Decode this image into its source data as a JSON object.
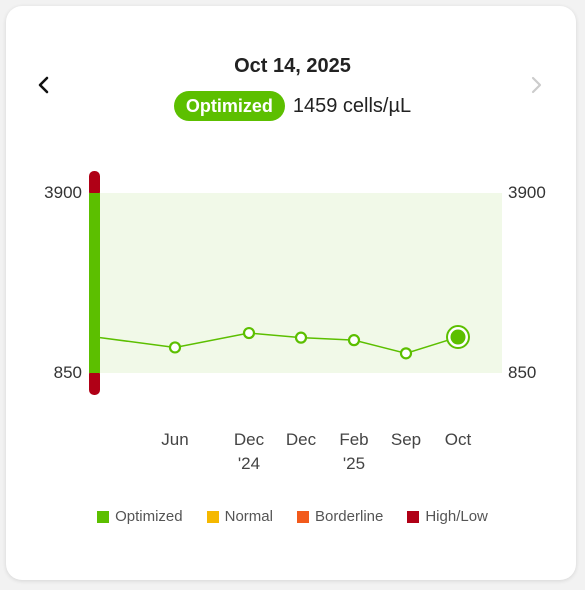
{
  "header": {
    "date": "Oct 14, 2025",
    "status_badge": "Optimized",
    "reading": "1459 cells/µL"
  },
  "icons": {
    "prev": "chevron-left-icon",
    "next": "chevron-right-icon"
  },
  "colors": {
    "optimized": "#5cbf00",
    "normal": "#f5b800",
    "borderline": "#f25a1b",
    "high_low": "#b00016",
    "range_fill": "#f1f9e8",
    "next_disabled": "#cccccc"
  },
  "chart_data": {
    "type": "line",
    "y_range_labels": {
      "top": "3900",
      "bottom": "850"
    },
    "ylim": [
      850,
      3900
    ],
    "x_labels": [
      {
        "line1": "Jun",
        "line2": ""
      },
      {
        "line1": "Dec",
        "line2": "'24"
      },
      {
        "line1": "Dec",
        "line2": ""
      },
      {
        "line1": "Feb",
        "line2": "'25"
      },
      {
        "line1": "Sep",
        "line2": ""
      },
      {
        "line1": "Oct",
        "line2": ""
      }
    ],
    "series": [
      {
        "values": [
          1283,
          1527,
          1449,
          1407,
          1183,
          1459
        ]
      }
    ],
    "leading_value": 1449,
    "highlight_last": true
  },
  "legend": [
    {
      "label": "Optimized",
      "color": "#5cbf00"
    },
    {
      "label": "Normal",
      "color": "#f5b800"
    },
    {
      "label": "Borderline",
      "color": "#f25a1b"
    },
    {
      "label": "High/Low",
      "color": "#b00016"
    }
  ]
}
